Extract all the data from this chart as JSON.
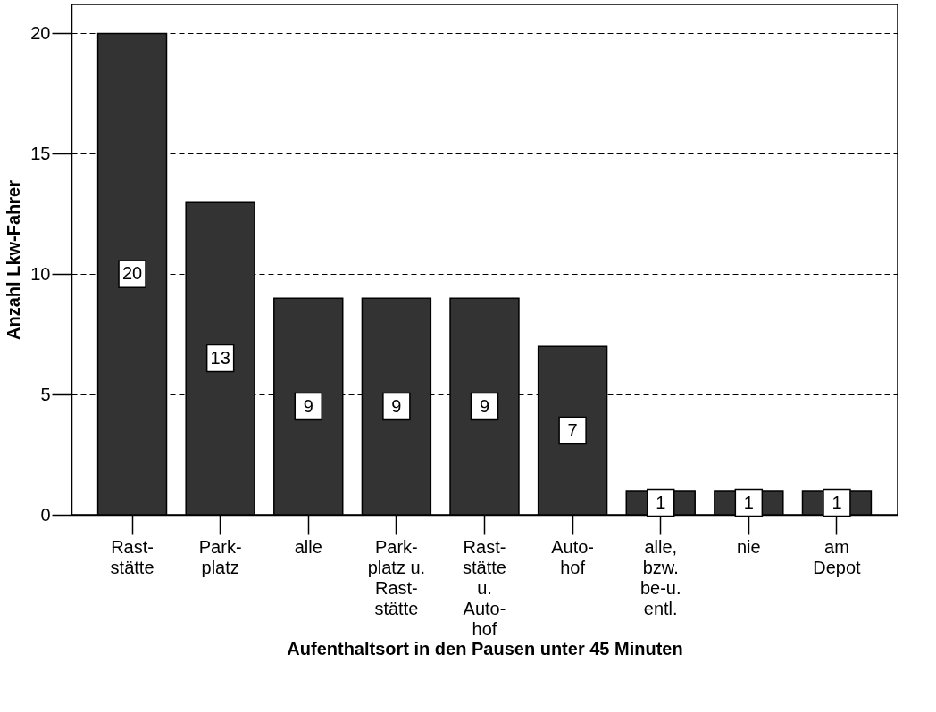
{
  "chart_data": {
    "type": "bar",
    "xlabel": "Aufenthaltsort in den Pausen unter 45 Minuten",
    "ylabel": "Anzahl Lkw-Fahrer",
    "categories": [
      "Rast-\nstätte",
      "Park-\nplatz",
      "alle",
      "Park-\nplatz u.\nRast-\nstätte",
      "Rast-\nstätte\nu.\nAuto-\nhof",
      "Auto-\nhof",
      "alle,\nbzw.\nbe-u.\nentl.",
      "nie",
      "am\nDepot"
    ],
    "values": [
      20,
      13,
      9,
      9,
      9,
      7,
      1,
      1,
      1
    ],
    "color": "#333333",
    "data_labels": true,
    "ylim": [
      0,
      21.2
    ],
    "yticks": [
      0,
      5,
      10,
      15,
      20
    ],
    "grid": "y"
  }
}
